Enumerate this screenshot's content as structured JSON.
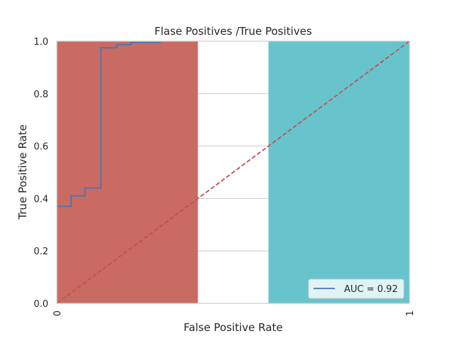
{
  "chart_data": {
    "type": "line",
    "title": "Flase Positives /True Positives",
    "xlabel": "False Positive Rate",
    "ylabel": "True Positive Rate",
    "xlim": [
      0,
      1
    ],
    "ylim": [
      0,
      1
    ],
    "grid": true,
    "x_ticks": [
      0,
      1
    ],
    "x_tick_labels": [
      "0",
      "1"
    ],
    "y_ticks": [
      0,
      0.2,
      0.4,
      0.6,
      0.8,
      1.0
    ],
    "y_tick_labels": [
      "0.0",
      "0.2",
      "0.4",
      "0.6",
      "0.8",
      "1.0"
    ],
    "bars": [
      {
        "x_start": 0.0,
        "x_end": 0.4,
        "color": "#c96b63"
      },
      {
        "x_start": 0.6,
        "x_end": 1.0,
        "color": "#67c4cc"
      }
    ],
    "series": [
      {
        "name": "AUC = 0.92",
        "kind": "step",
        "color": "#4c72b0",
        "points": [
          [
            0.0,
            0.37
          ],
          [
            0.04,
            0.37
          ],
          [
            0.04,
            0.41
          ],
          [
            0.08,
            0.41
          ],
          [
            0.08,
            0.44
          ],
          [
            0.125,
            0.44
          ],
          [
            0.125,
            0.975
          ],
          [
            0.17,
            0.975
          ],
          [
            0.17,
            0.987
          ],
          [
            0.21,
            0.987
          ],
          [
            0.21,
            0.995
          ],
          [
            0.295,
            0.995
          ]
        ]
      },
      {
        "kind": "dashed-line",
        "color": "#c44e52",
        "points": [
          [
            0,
            0
          ],
          [
            1,
            1
          ]
        ]
      }
    ],
    "legend": {
      "position": "bottom-right",
      "entries": [
        "AUC = 0.92"
      ]
    }
  }
}
